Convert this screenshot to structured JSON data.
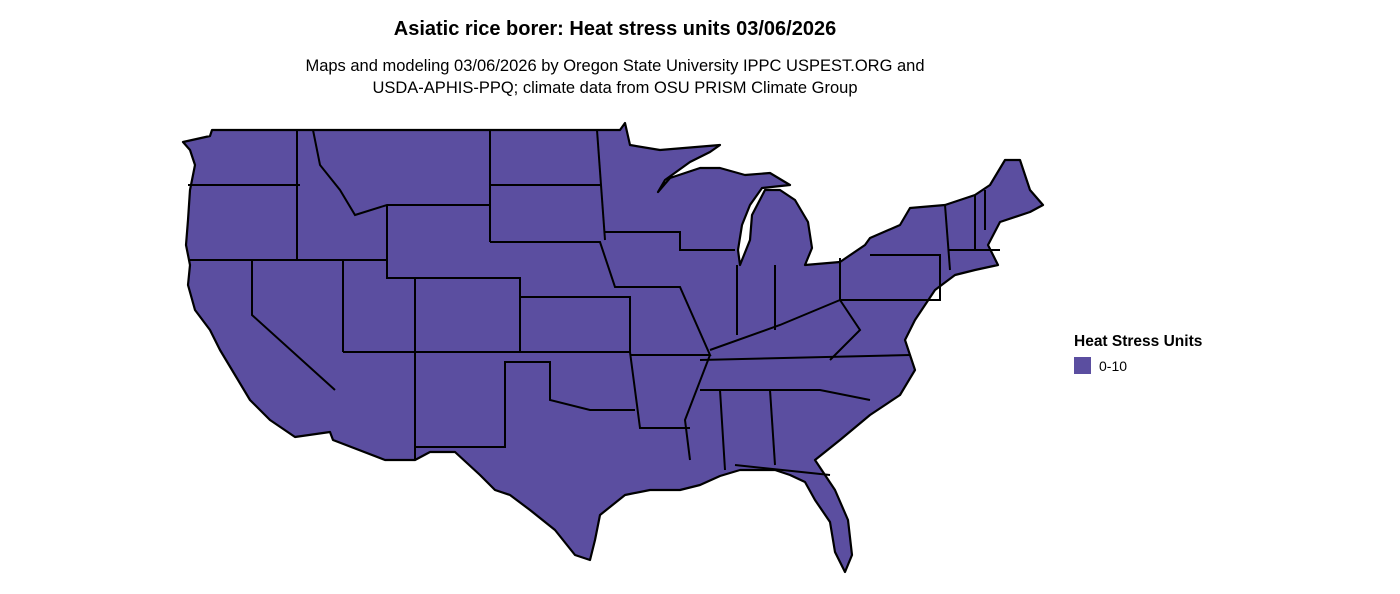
{
  "title": "Asiatic rice borer: Heat stress units 03/06/2026",
  "subtitle_lines": [
    "Maps and modeling 03/06/2026 by Oregon State University IPPC USPEST.ORG and",
    "USDA-APHIS-PPQ; climate data from OSU PRISM Climate Group"
  ],
  "map": {
    "region": "Contiguous United States",
    "fill_color": "#5b4ea0",
    "border_color": "#000000"
  },
  "legend": {
    "title": "Heat Stress Units",
    "items": [
      {
        "label": "0-10",
        "color": "#5b4ea0"
      }
    ]
  }
}
